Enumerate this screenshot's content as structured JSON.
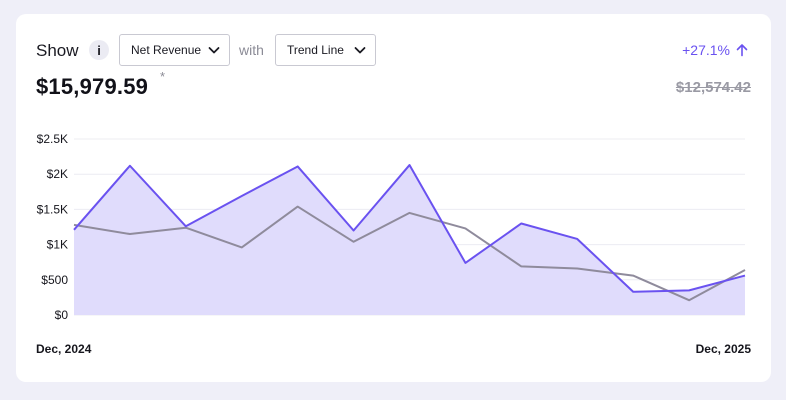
{
  "header": {
    "show_label": "Show",
    "info_label": "i",
    "metric_select": "Net Revenue",
    "with_label": "with",
    "mode_select": "Trend Line",
    "change": "+27.1%"
  },
  "summary": {
    "current_value": "$15,979.59",
    "asterisk": "*",
    "previous_value": "$12,574.42"
  },
  "x_axis": {
    "start_label": "Dec, 2024",
    "end_label": "Dec, 2025"
  },
  "colors": {
    "primary": "#6a52f0",
    "fill": "#e0dcfc",
    "comparison": "#8f8b9c",
    "grid": "#ececf2"
  },
  "chart_data": {
    "type": "area",
    "ylim": [
      0,
      2500
    ],
    "y_ticks": [
      "$0",
      "$500",
      "$1K",
      "$1.5K",
      "$2K",
      "$2.5K"
    ],
    "y_tick_values": [
      0,
      500,
      1000,
      1500,
      2000,
      2500
    ],
    "grid": true,
    "series": [
      {
        "values": [
          1210,
          2120,
          1260,
          1690,
          2110,
          1200,
          2130,
          740,
          1300,
          1080,
          330,
          350,
          560
        ]
      },
      {
        "values": [
          1280,
          1150,
          1240,
          960,
          1540,
          1040,
          1450,
          1230,
          690,
          660,
          560,
          210,
          640
        ]
      }
    ]
  }
}
